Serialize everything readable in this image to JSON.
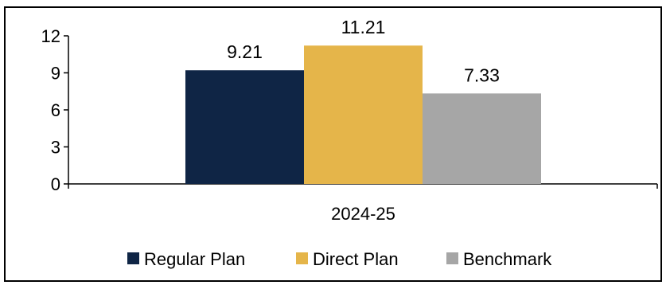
{
  "chart_data": {
    "type": "bar",
    "categories": [
      "2024-25"
    ],
    "series": [
      {
        "name": "Regular Plan",
        "values": [
          9.21
        ],
        "color": "#0f2545"
      },
      {
        "name": "Direct Plan",
        "values": [
          11.21
        ],
        "color": "#e5b54a"
      },
      {
        "name": "Benchmark",
        "values": [
          7.33
        ],
        "color": "#a6a6a6"
      }
    ],
    "data_labels": [
      "9.21",
      "11.21",
      "7.33"
    ],
    "yticks": [
      "0",
      "3",
      "6",
      "9",
      "12"
    ],
    "ylim": [
      0,
      12
    ],
    "title": "",
    "xlabel": "",
    "ylabel": "",
    "grid": false,
    "legend": "bottom"
  }
}
